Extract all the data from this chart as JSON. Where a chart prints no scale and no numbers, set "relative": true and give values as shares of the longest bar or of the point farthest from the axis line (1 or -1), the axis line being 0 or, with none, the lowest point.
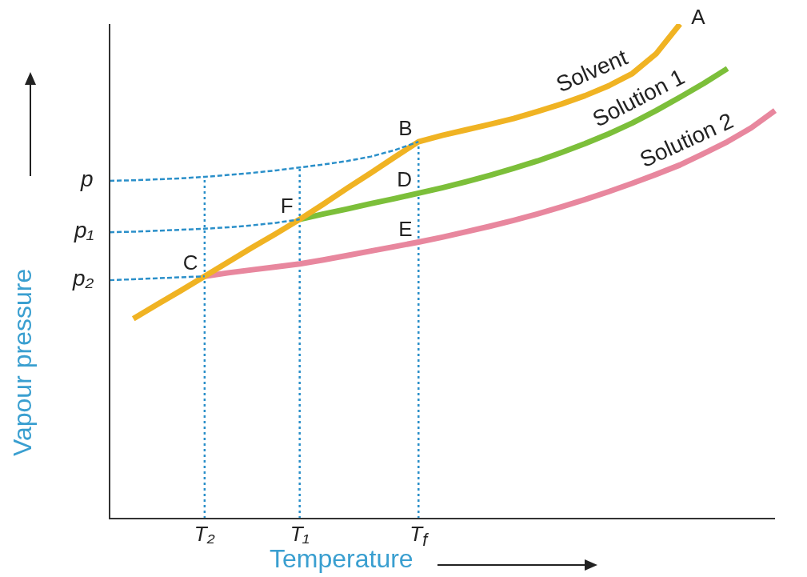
{
  "chart_data": {
    "type": "line",
    "relative": true,
    "xlabel": "Temperature",
    "ylabel": "Vapour pressure",
    "categories": [
      null,
      null,
      null,
      null,
      "T₂",
      null,
      null,
      null,
      "T₁",
      null,
      null,
      null,
      null,
      "T$_{f}$",
      null,
      null,
      null,
      null,
      null,
      null,
      null,
      null,
      null,
      null,
      null,
      null,
      null,
      null,
      null
    ],
    "series": [
      {
        "name": "Solvent",
        "color": "#f0b323",
        "line_style": "solid",
        "values": [
          null,
          0.404,
          0.433,
          0.461,
          0.49,
          0.519,
          0.548,
          0.576,
          0.605,
          0.636,
          0.668,
          0.699,
          0.731,
          0.762,
          0.775,
          0.786,
          0.797,
          0.809,
          0.823,
          0.838,
          0.855,
          0.875,
          0.9,
          0.94,
          1.0,
          null,
          null,
          null,
          null
        ]
      },
      {
        "name": "Solution 1",
        "color": "#7cbf3a",
        "line_style": "solid",
        "values": [
          null,
          null,
          null,
          null,
          null,
          null,
          null,
          null,
          0.605,
          0.616,
          0.626,
          0.637,
          0.647,
          0.658,
          0.669,
          0.681,
          0.694,
          0.708,
          0.723,
          0.74,
          0.758,
          0.778,
          0.8,
          0.825,
          0.852,
          0.88,
          0.91,
          null,
          null
        ]
      },
      {
        "name": "Solution 2",
        "color": "#e8879e",
        "line_style": "solid",
        "values": [
          null,
          null,
          null,
          null,
          0.49,
          0.497,
          0.503,
          0.509,
          0.515,
          0.523,
          0.532,
          0.541,
          0.55,
          0.559,
          0.569,
          0.58,
          0.591,
          0.603,
          0.616,
          0.63,
          0.645,
          0.661,
          0.678,
          0.696,
          0.715,
          0.738,
          0.762,
          0.79,
          0.825
        ]
      },
      {
        "name": "p",
        "color": "#2a8fc9",
        "line_style": "dashed",
        "values": [
          0.683,
          0.684,
          0.686,
          0.688,
          0.691,
          0.695,
          0.699,
          0.704,
          0.71,
          0.716,
          0.723,
          0.732,
          0.745,
          0.762,
          null,
          null,
          null,
          null,
          null,
          null,
          null,
          null,
          null,
          null,
          null,
          null,
          null,
          null,
          null
        ]
      },
      {
        "name": "p₁",
        "color": "#2a8fc9",
        "line_style": "dashed",
        "values": [
          0.579,
          0.58,
          0.582,
          0.584,
          0.586,
          0.589,
          0.593,
          0.598,
          0.605,
          null,
          null,
          null,
          null,
          null,
          null,
          null,
          null,
          null,
          null,
          null,
          null,
          null,
          null,
          null,
          null,
          null,
          null,
          null,
          null
        ]
      },
      {
        "name": "p₂",
        "color": "#2a8fc9",
        "line_style": "dashed",
        "values": [
          0.482,
          0.484,
          0.486,
          0.488,
          0.49,
          null,
          null,
          null,
          null,
          null,
          null,
          null,
          null,
          null,
          null,
          null,
          null,
          null,
          null,
          null,
          null,
          null,
          null,
          null,
          null,
          null,
          null,
          null,
          null
        ]
      }
    ],
    "ref_lines": [
      {
        "axis": "x",
        "value": "T₂",
        "color": "#2a8fc9",
        "line_style": "dotted"
      },
      {
        "axis": "x",
        "value": "T₁",
        "color": "#2a8fc9",
        "line_style": "dotted"
      },
      {
        "axis": "x",
        "value": "T$_{f}$",
        "color": "#2a8fc9",
        "line_style": "dotted"
      }
    ],
    "annotations": [
      "A",
      {
        "text": "B",
        "x": "T$_{f}$",
        "y": 0.762
      },
      {
        "text": "C",
        "x": "T₂",
        "y": 0.49
      },
      {
        "text": "D",
        "x": "T$_{f}$",
        "y": 0.658
      },
      {
        "text": "E",
        "x": "T$_{f}$",
        "y": 0.559
      },
      {
        "text": "F",
        "x": "T₁",
        "y": 0.605
      }
    ]
  }
}
